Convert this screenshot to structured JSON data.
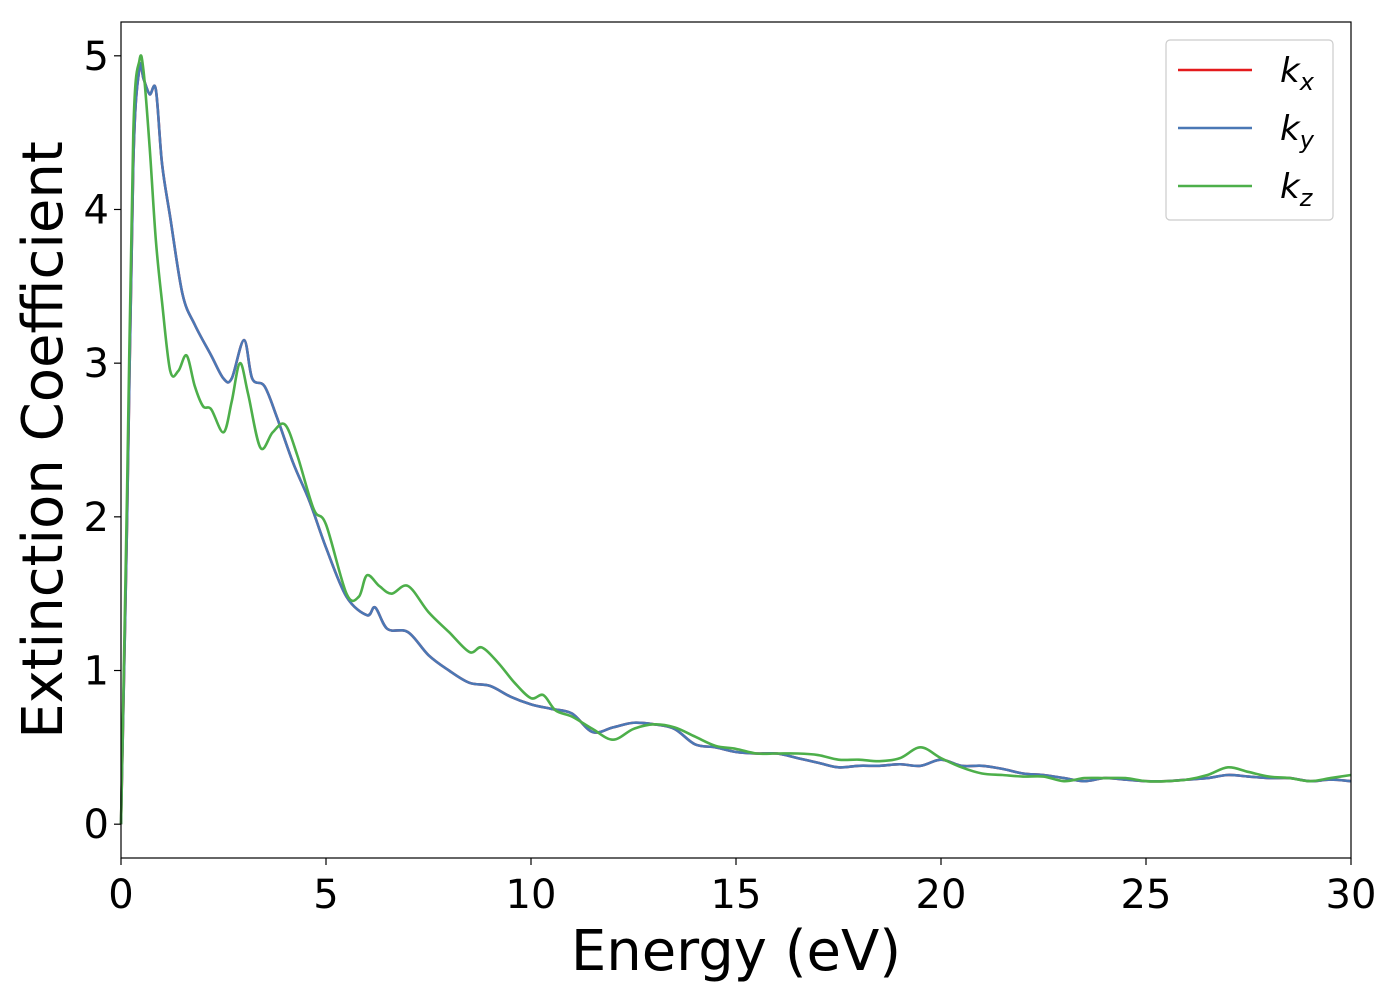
{
  "chart_data": {
    "type": "line",
    "xlabel": "Energy (eV)",
    "ylabel": "Extinction Coefficient",
    "xlim": [
      0,
      30
    ],
    "ylim": [
      -0.22,
      5.22
    ],
    "xticks": [
      0,
      5,
      10,
      15,
      20,
      25,
      30
    ],
    "yticks": [
      0,
      1,
      2,
      3,
      4,
      5
    ],
    "xtick_labels": [
      "0",
      "5",
      "10",
      "15",
      "20",
      "25",
      "30"
    ],
    "ytick_labels": [
      "0",
      "1",
      "2",
      "3",
      "4",
      "5"
    ],
    "grid": false,
    "legend_position": "top-right",
    "series": [
      {
        "name": "k",
        "subscript": "x",
        "color": "#e41a1c",
        "x": [
          0,
          0.15,
          0.3,
          0.45,
          0.55,
          0.7,
          0.85,
          1.0,
          1.2,
          1.5,
          1.8,
          2.2,
          2.5,
          2.7,
          3.0,
          3.2,
          3.5,
          3.8,
          4.2,
          4.6,
          5.0,
          5.5,
          6.0,
          6.2,
          6.5,
          7.0,
          7.5,
          8.0,
          8.5,
          9.0,
          9.5,
          10.0,
          10.5,
          11.0,
          11.5,
          12.0,
          12.5,
          13.0,
          13.5,
          14.0,
          14.5,
          15.0,
          15.5,
          16.0,
          16.5,
          17.0,
          17.5,
          18.0,
          18.5,
          19.0,
          19.5,
          20.0,
          20.5,
          21.0,
          21.5,
          22.0,
          22.5,
          23.0,
          23.5,
          24.0,
          24.5,
          25.0,
          25.5,
          26.0,
          26.5,
          27.0,
          27.5,
          28.0,
          28.5,
          29.0,
          29.5,
          30.0
        ],
        "y": [
          0,
          2.0,
          4.3,
          4.92,
          4.85,
          4.75,
          4.78,
          4.3,
          3.95,
          3.45,
          3.25,
          3.05,
          2.9,
          2.9,
          3.15,
          2.9,
          2.85,
          2.65,
          2.35,
          2.1,
          1.8,
          1.48,
          1.36,
          1.41,
          1.27,
          1.25,
          1.1,
          1.0,
          0.92,
          0.9,
          0.83,
          0.78,
          0.75,
          0.72,
          0.6,
          0.63,
          0.66,
          0.65,
          0.62,
          0.52,
          0.5,
          0.47,
          0.46,
          0.46,
          0.43,
          0.4,
          0.37,
          0.38,
          0.38,
          0.39,
          0.38,
          0.42,
          0.38,
          0.38,
          0.36,
          0.33,
          0.32,
          0.3,
          0.28,
          0.3,
          0.29,
          0.28,
          0.28,
          0.29,
          0.3,
          0.32,
          0.31,
          0.3,
          0.3,
          0.28,
          0.29,
          0.28
        ]
      },
      {
        "name": "k",
        "subscript": "y",
        "color": "#4a78b5",
        "x": [
          0,
          0.15,
          0.3,
          0.45,
          0.55,
          0.7,
          0.85,
          1.0,
          1.2,
          1.5,
          1.8,
          2.2,
          2.5,
          2.7,
          3.0,
          3.2,
          3.5,
          3.8,
          4.2,
          4.6,
          5.0,
          5.5,
          6.0,
          6.2,
          6.5,
          7.0,
          7.5,
          8.0,
          8.5,
          9.0,
          9.5,
          10.0,
          10.5,
          11.0,
          11.5,
          12.0,
          12.5,
          13.0,
          13.5,
          14.0,
          14.5,
          15.0,
          15.5,
          16.0,
          16.5,
          17.0,
          17.5,
          18.0,
          18.5,
          19.0,
          19.5,
          20.0,
          20.5,
          21.0,
          21.5,
          22.0,
          22.5,
          23.0,
          23.5,
          24.0,
          24.5,
          25.0,
          25.5,
          26.0,
          26.5,
          27.0,
          27.5,
          28.0,
          28.5,
          29.0,
          29.5,
          30.0
        ],
        "y": [
          0,
          2.0,
          4.3,
          4.92,
          4.85,
          4.75,
          4.78,
          4.3,
          3.95,
          3.45,
          3.25,
          3.05,
          2.9,
          2.9,
          3.15,
          2.9,
          2.85,
          2.65,
          2.35,
          2.1,
          1.8,
          1.48,
          1.36,
          1.41,
          1.27,
          1.25,
          1.1,
          1.0,
          0.92,
          0.9,
          0.83,
          0.78,
          0.75,
          0.72,
          0.6,
          0.63,
          0.66,
          0.65,
          0.62,
          0.52,
          0.5,
          0.47,
          0.46,
          0.46,
          0.43,
          0.4,
          0.37,
          0.38,
          0.38,
          0.39,
          0.38,
          0.42,
          0.38,
          0.38,
          0.36,
          0.33,
          0.32,
          0.3,
          0.28,
          0.3,
          0.29,
          0.28,
          0.28,
          0.29,
          0.3,
          0.32,
          0.31,
          0.3,
          0.3,
          0.28,
          0.29,
          0.28
        ]
      },
      {
        "name": "k",
        "subscript": "z",
        "color": "#4daf4a",
        "x": [
          0,
          0.15,
          0.3,
          0.45,
          0.55,
          0.7,
          0.85,
          1.0,
          1.2,
          1.4,
          1.6,
          1.8,
          2.0,
          2.2,
          2.5,
          2.7,
          2.9,
          3.1,
          3.4,
          3.7,
          4.0,
          4.3,
          4.7,
          5.0,
          5.5,
          5.8,
          6.0,
          6.3,
          6.6,
          7.0,
          7.5,
          8.0,
          8.5,
          8.8,
          9.2,
          9.6,
          10.0,
          10.3,
          10.6,
          11.0,
          11.5,
          12.0,
          12.5,
          13.0,
          13.5,
          14.0,
          14.5,
          15.0,
          15.5,
          16.0,
          16.5,
          17.0,
          17.5,
          18.0,
          18.5,
          19.0,
          19.5,
          20.0,
          20.5,
          21.0,
          21.5,
          22.0,
          22.5,
          23.0,
          23.5,
          24.0,
          24.5,
          25.0,
          25.5,
          26.0,
          26.5,
          27.0,
          27.5,
          28.0,
          28.5,
          29.0,
          29.5,
          30.0
        ],
        "y": [
          0,
          2.2,
          4.5,
          4.97,
          4.9,
          4.4,
          3.8,
          3.4,
          2.95,
          2.95,
          3.05,
          2.85,
          2.72,
          2.7,
          2.55,
          2.75,
          3.0,
          2.8,
          2.45,
          2.55,
          2.6,
          2.4,
          2.05,
          1.95,
          1.5,
          1.48,
          1.62,
          1.55,
          1.5,
          1.55,
          1.38,
          1.25,
          1.12,
          1.15,
          1.05,
          0.92,
          0.82,
          0.84,
          0.74,
          0.7,
          0.62,
          0.55,
          0.62,
          0.65,
          0.63,
          0.57,
          0.51,
          0.49,
          0.46,
          0.46,
          0.46,
          0.45,
          0.42,
          0.42,
          0.41,
          0.43,
          0.5,
          0.43,
          0.37,
          0.33,
          0.32,
          0.31,
          0.31,
          0.28,
          0.3,
          0.3,
          0.3,
          0.28,
          0.28,
          0.29,
          0.32,
          0.37,
          0.34,
          0.31,
          0.3,
          0.28,
          0.3,
          0.32
        ]
      }
    ]
  }
}
